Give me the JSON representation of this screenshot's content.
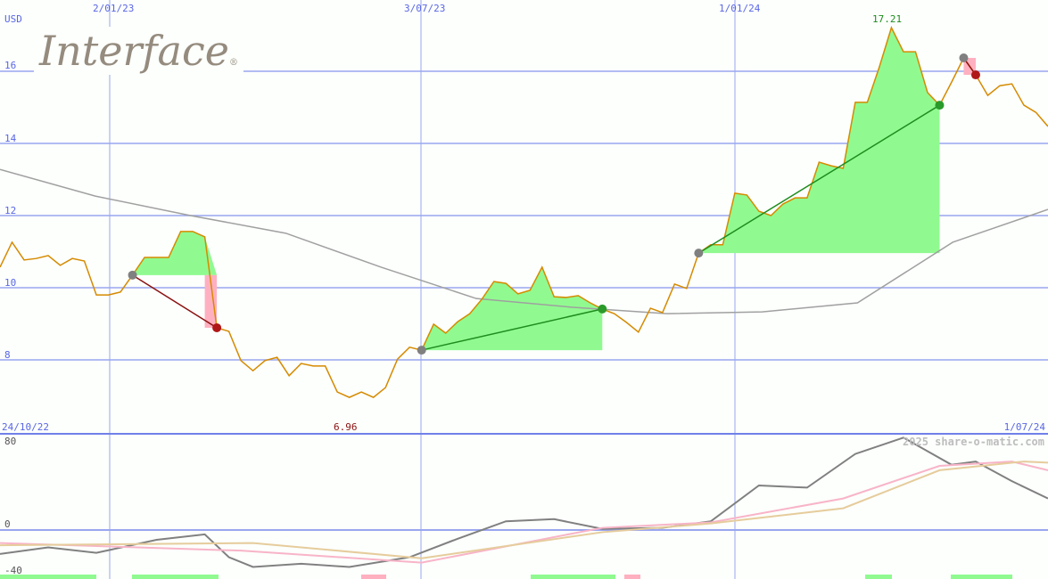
{
  "brand": {
    "logo_text": "Interface"
  },
  "watermark": "2025 share-o-matic.com",
  "chart_data": [
    {
      "type": "line",
      "title": "",
      "currency_label": "USD",
      "x_range": [
        "24/10/22",
        "1/07/24"
      ],
      "x_ticks": [
        "2/01/23",
        "3/07/23",
        "1/01/24"
      ],
      "y_ticks": [
        8,
        10,
        12,
        14,
        16
      ],
      "ylim": [
        6.2,
        18.0
      ],
      "grid": true,
      "high_label": "17.21",
      "low_label": "6.96",
      "colors": {
        "price": "#d68a00",
        "ma": "#a0a0a0",
        "gain": "#90fa90",
        "loss": "#ffb0c0",
        "win_line": "#1e8c1e",
        "loss_line": "#8b1010",
        "grid": "#9aa6f0"
      },
      "price": [
        10.57,
        11.26,
        10.77,
        10.81,
        10.89,
        10.62,
        10.81,
        10.74,
        9.8,
        9.8,
        9.88,
        10.35,
        10.84,
        10.84,
        10.84,
        11.56,
        11.56,
        11.41,
        8.89,
        8.79,
        7.98,
        7.7,
        7.98,
        8.07,
        7.56,
        7.9,
        7.83,
        7.83,
        7.11,
        6.96,
        7.11,
        6.96,
        7.23,
        8.02,
        8.35,
        8.27,
        8.99,
        8.74,
        9.06,
        9.28,
        9.68,
        10.17,
        10.12,
        9.83,
        9.93,
        10.57,
        9.75,
        9.73,
        9.78,
        9.58,
        9.41,
        9.28,
        9.04,
        8.77,
        9.43,
        9.31,
        10.1,
        9.98,
        10.96,
        11.19,
        11.19,
        12.62,
        12.57,
        12.12,
        12.0,
        12.32,
        12.49,
        12.49,
        13.48,
        13.38,
        13.31,
        15.14,
        15.14,
        16.12,
        17.21,
        16.54,
        16.54,
        15.41,
        15.06,
        15.7,
        16.37,
        15.9,
        15.33,
        15.6,
        15.65,
        15.06,
        14.86,
        14.47
      ],
      "moving_average": [
        13.28,
        12.54,
        12.0,
        11.51,
        10.57,
        9.7,
        9.46,
        9.28,
        9.33,
        9.58,
        11.26,
        12.17
      ],
      "trades": [
        {
          "entry_index": 11,
          "exit_index": 18,
          "result": "loss"
        },
        {
          "entry_index": 35,
          "exit_index": 50,
          "result": "win"
        },
        {
          "entry_index": 58,
          "exit_index": 78,
          "result": "win"
        },
        {
          "entry_index": 80,
          "exit_index": 81,
          "result": "loss"
        }
      ]
    },
    {
      "type": "line",
      "title": "",
      "y_ticks": [
        80,
        0,
        -40
      ],
      "ylim": [
        -45,
        85
      ],
      "series": [
        {
          "color": "#808080",
          "points": [
            [
              0,
              -22
            ],
            [
              4,
              -16
            ],
            [
              8,
              -21
            ],
            [
              13,
              -9
            ],
            [
              17,
              -4
            ],
            [
              19,
              -25
            ],
            [
              21,
              -34
            ],
            [
              25,
              -31
            ],
            [
              29,
              -34
            ],
            [
              34,
              -25
            ],
            [
              38,
              -8
            ],
            [
              42,
              8
            ],
            [
              46,
              10
            ],
            [
              50,
              1
            ],
            [
              55,
              2
            ],
            [
              59,
              8
            ],
            [
              63,
              41
            ],
            [
              67,
              39
            ],
            [
              71,
              70
            ],
            [
              75,
              85
            ],
            [
              79,
              60
            ],
            [
              81,
              63
            ],
            [
              84,
              45
            ],
            [
              87,
              29
            ]
          ]
        },
        {
          "color": "#f8b4c8",
          "points": [
            [
              0,
              -12
            ],
            [
              20,
              -19
            ],
            [
              35,
              -30
            ],
            [
              50,
              2
            ],
            [
              59,
              7
            ],
            [
              70,
              29
            ],
            [
              78,
              59
            ],
            [
              84,
              63
            ],
            [
              87,
              55
            ]
          ]
        },
        {
          "color": "#e6cc9c",
          "points": [
            [
              0,
              -14
            ],
            [
              21,
              -12
            ],
            [
              35,
              -26
            ],
            [
              50,
              -2
            ],
            [
              59,
              6
            ],
            [
              70,
              20
            ],
            [
              78,
              55
            ],
            [
              85,
              63
            ],
            [
              87,
              62
            ]
          ]
        }
      ]
    }
  ]
}
